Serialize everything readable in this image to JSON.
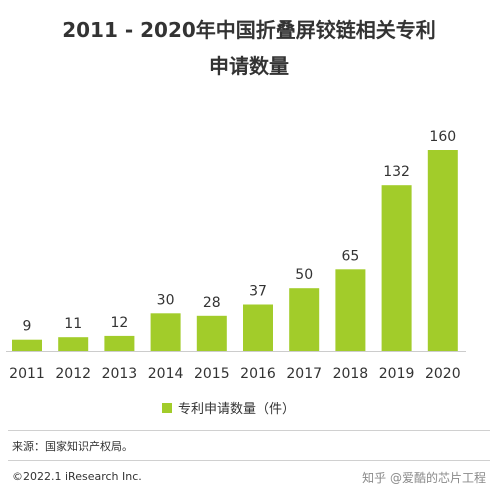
{
  "header": {
    "title_line1": "2011 - 2020年中国折叠屏铰链相关专利",
    "title_line2": "申请数量"
  },
  "chart_data": {
    "type": "bar",
    "categories": [
      "2011",
      "2012",
      "2013",
      "2014",
      "2015",
      "2016",
      "2017",
      "2018",
      "2019",
      "2020"
    ],
    "values": [
      9,
      11,
      12,
      30,
      28,
      37,
      50,
      65,
      132,
      160
    ],
    "series": [
      {
        "name": "专利申请数量（件）",
        "values": [
          9,
          11,
          12,
          30,
          28,
          37,
          50,
          65,
          132,
          160
        ]
      }
    ],
    "ylim": [
      0,
      160
    ],
    "grid": false,
    "legend_placement": "bottom",
    "bar_color": "#a2cc2a",
    "value_labels": true
  },
  "legend": {
    "label": "专利申请数量（件）"
  },
  "footer": {
    "source": "来源：国家知识产权局。",
    "copyright": "©2022.1 iResearch Inc.",
    "watermark": "知乎 @爱酷的芯片工程"
  }
}
